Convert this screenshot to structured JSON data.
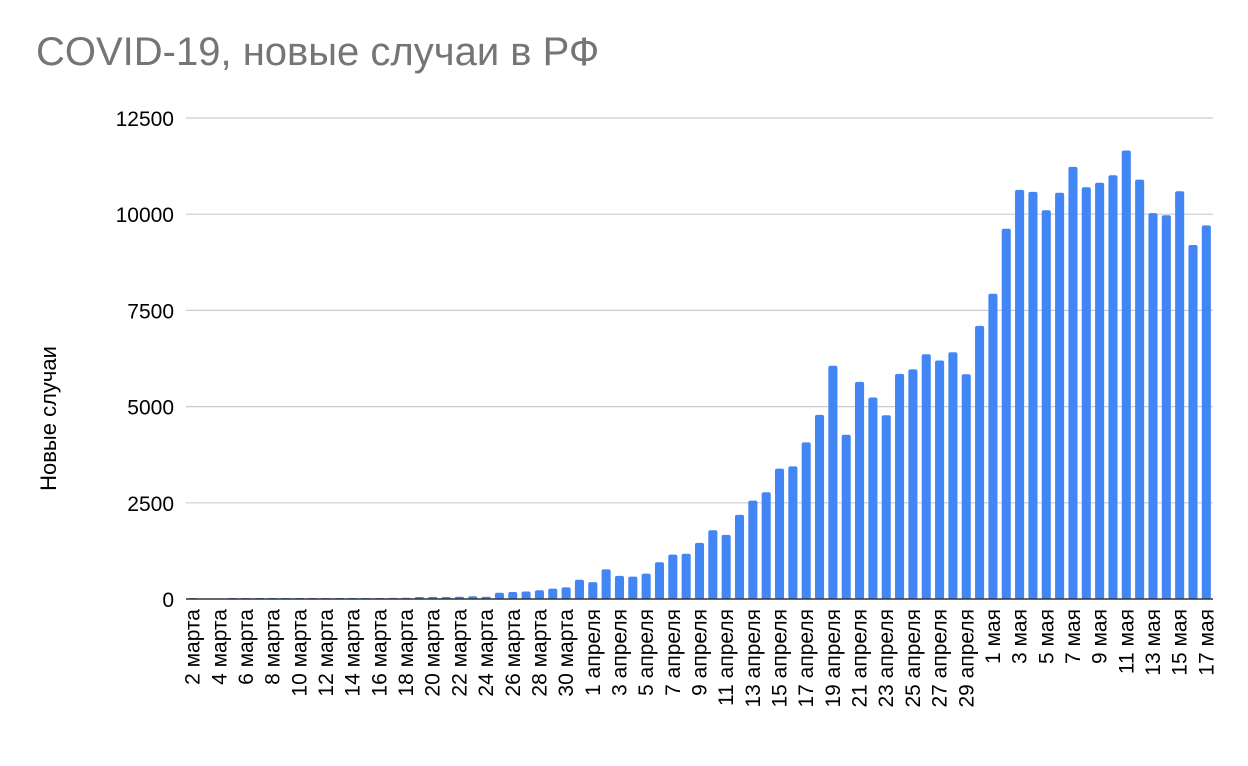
{
  "chart_data": {
    "type": "bar",
    "title": "COVID-19, новые случаи в РФ",
    "xlabel": "",
    "ylabel": "Новые случаи",
    "ylim": [
      0,
      12500
    ],
    "yticks": [
      0,
      2500,
      5000,
      7500,
      10000,
      12500
    ],
    "grid": true,
    "bar_color": "#4285f4",
    "categories": [
      "2 марта",
      "3 марта",
      "4 марта",
      "5 марта",
      "6 марта",
      "7 марта",
      "8 марта",
      "9 марта",
      "10 марта",
      "11 марта",
      "12 марта",
      "13 марта",
      "14 марта",
      "15 марта",
      "16 марта",
      "17 марта",
      "18 марта",
      "19 марта",
      "20 марта",
      "21 марта",
      "22 марта",
      "23 марта",
      "24 марта",
      "25 марта",
      "26 марта",
      "27 марта",
      "28 марта",
      "29 марта",
      "30 марта",
      "31 марта",
      "1 апреля",
      "2 апреля",
      "3 апреля",
      "4 апреля",
      "5 апреля",
      "6 апреля",
      "7 апреля",
      "8 апреля",
      "9 апреля",
      "10 апреля",
      "11 апреля",
      "12 апреля",
      "13 апреля",
      "14 апреля",
      "15 апреля",
      "16 апреля",
      "17 апреля",
      "18 апреля",
      "19 апреля",
      "20 апреля",
      "21 апреля",
      "22 апреля",
      "23 апреля",
      "24 апреля",
      "25 апреля",
      "26 апреля",
      "27 апреля",
      "28 апреля",
      "29 апреля",
      "30 апреля",
      "1 мая",
      "2 мая",
      "3 мая",
      "4 мая",
      "5 мая",
      "6 мая",
      "7 мая",
      "8 мая",
      "9 мая",
      "10 мая",
      "11 мая",
      "12 мая",
      "13 мая",
      "14 мая",
      "15 мая",
      "16 мая",
      "17 мая"
    ],
    "tick_labels": [
      "2 марта",
      "4 марта",
      "6 марта",
      "8 марта",
      "10 марта",
      "12 марта",
      "14 марта",
      "16 марта",
      "18 марта",
      "20 марта",
      "22 марта",
      "24 марта",
      "26 марта",
      "28 марта",
      "30 марта",
      "1 апреля",
      "3 апреля",
      "5 апреля",
      "7 апреля",
      "9 апреля",
      "11 апреля",
      "13 апреля",
      "15 апреля",
      "17 апреля",
      "19 апреля",
      "21 апреля",
      "23 апреля",
      "25 апреля",
      "27 апреля",
      "29 апреля",
      "1 мая",
      "3 мая",
      "5 мая",
      "7 мая",
      "9 мая",
      "11 мая",
      "13 мая",
      "15 мая",
      "17 мая"
    ],
    "values": [
      1,
      0,
      0,
      1,
      1,
      2,
      4,
      1,
      3,
      8,
      6,
      11,
      14,
      4,
      14,
      30,
      33,
      52,
      54,
      53,
      58,
      71,
      57,
      163,
      182,
      196,
      228,
      270,
      302,
      500,
      440,
      771,
      601,
      582,
      658,
      954,
      1154,
      1175,
      1459,
      1786,
      1667,
      2186,
      2558,
      2774,
      3388,
      3448,
      4070,
      4785,
      6060,
      4268,
      5642,
      5236,
      4774,
      5849,
      5966,
      6361,
      6198,
      6411,
      5841,
      7099,
      7933,
      9623,
      10633,
      10581,
      10102,
      10559,
      11231,
      10699,
      10817,
      11012,
      11656,
      10899,
      10028,
      9974,
      10598,
      9200,
      9709
    ]
  }
}
